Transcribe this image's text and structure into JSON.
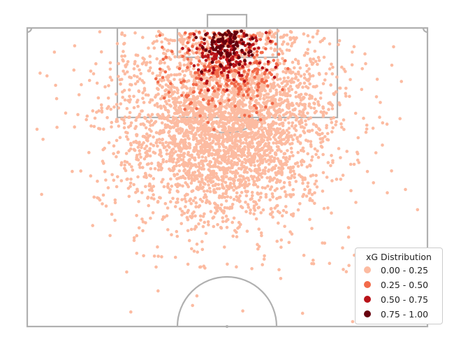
{
  "chart_data": {
    "type": "scatter",
    "title": "",
    "xlabel": "",
    "ylabel": "",
    "background": "half football pitch (attacking half)",
    "pitch_line_color": "#b0b0b0",
    "legend": {
      "title": "xG Distribution",
      "placement": "lower-right",
      "entries": [
        {
          "label": "0.00 - 0.25",
          "color": "#fcbba1"
        },
        {
          "label": "0.25 - 0.50",
          "color": "#f26a4a"
        },
        {
          "label": "0.50 - 0.75",
          "color": "#b81319"
        },
        {
          "label": "0.75 - 1.00",
          "color": "#67000d"
        }
      ]
    },
    "series": [
      {
        "name": "0.00 - 0.25",
        "density": "very high",
        "note": "broad cloud covering the penalty area and the zone up to ~25 m from goal"
      },
      {
        "name": "0.25 - 0.50",
        "density": "medium",
        "note": "concentrated inside the penalty area, mostly central"
      },
      {
        "name": "0.50 - 0.75",
        "density": "low",
        "note": "inside the six-yard box and near the penalty spot"
      },
      {
        "name": "0.75 - 1.00",
        "density": "low",
        "note": "tightly clustered in and just outside the six-yard box"
      }
    ]
  }
}
